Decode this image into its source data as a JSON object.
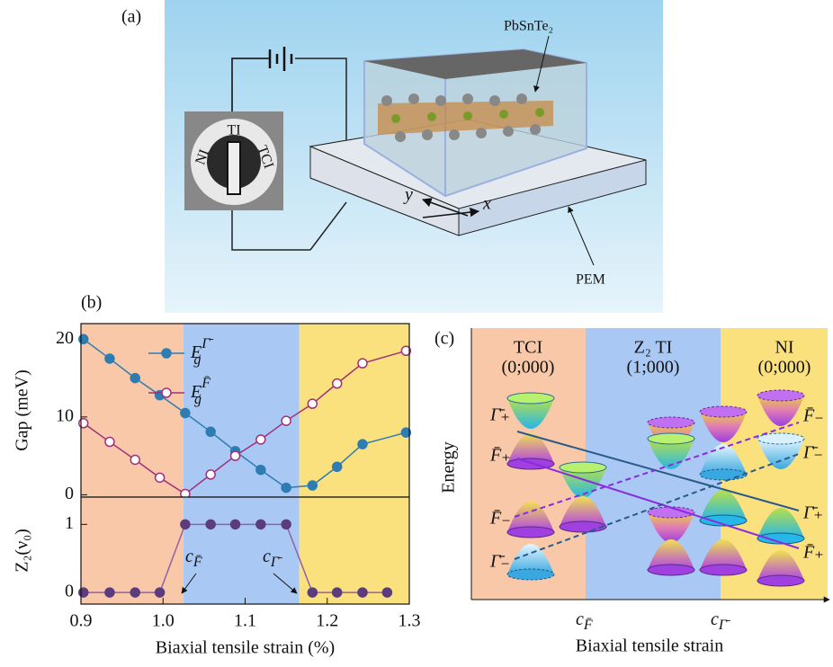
{
  "panel_a": {
    "label": "(a)",
    "material": "PbSnTe₂",
    "switch": [
      "NI",
      "TI",
      "TCI"
    ],
    "axis_y": "y",
    "axis_x": "x",
    "substrate": "PEM"
  },
  "panel_b_label": "(b)",
  "chart_data": [
    {
      "type": "line",
      "ylabel": "Gap (meV)",
      "xlim": [
        0.9,
        1.3
      ],
      "ylim": [
        -0.3,
        22
      ],
      "yticks": [
        0,
        10,
        20
      ],
      "regions": [
        {
          "from": 0.9,
          "to": 1.025,
          "color": "#f9c8a8"
        },
        {
          "from": 1.025,
          "to": 1.166,
          "color": "#a9c9f4"
        },
        {
          "from": 1.166,
          "to": 1.3,
          "color": "#fbe07e"
        }
      ],
      "x": [
        0.903,
        0.935,
        0.966,
        0.996,
        1.027,
        1.058,
        1.088,
        1.119,
        1.15,
        1.182,
        1.212,
        1.243,
        1.296
      ],
      "series": [
        {
          "name": "E",
          "name_sub": "g",
          "name_sup": "Γ̄",
          "color": "#2d7db3",
          "marker": "filled",
          "values": [
            20,
            17.5,
            15,
            12.8,
            10.5,
            8.1,
            5.6,
            3.2,
            0.9,
            1.2,
            3.6,
            6.5,
            8.0
          ]
        },
        {
          "name": "E",
          "name_sub": "g",
          "name_sup": "F̄",
          "color": "#a0307a",
          "marker": "open",
          "values": [
            9.2,
            6.8,
            4.5,
            2.2,
            0.1,
            2.6,
            5.0,
            7.1,
            9.5,
            11.7,
            14.3,
            16.9,
            18.5
          ]
        }
      ]
    },
    {
      "type": "line",
      "ylabel": "Z₂(ν₀)",
      "xlabel": "Biaxial tensile strain (%)",
      "xlim": [
        0.9,
        1.3
      ],
      "ylim": [
        -0.17,
        1.4
      ],
      "yticks": [
        0,
        1
      ],
      "xticks": [
        0.9,
        {
          "value": 1,
          "label": "1.0"
        },
        1.1,
        1.2,
        1.3
      ],
      "x": [
        0.903,
        0.935,
        0.966,
        0.996,
        1.027,
        1.058,
        1.088,
        1.119,
        1.15,
        1.182,
        1.212,
        1.243,
        1.273
      ],
      "series": [
        {
          "color": "#5b3d7e",
          "line_color": "#8f62a6",
          "marker": "filled",
          "values": [
            0,
            0,
            0,
            0,
            1,
            1,
            1,
            1,
            1,
            0,
            0,
            0,
            0
          ]
        }
      ],
      "annotations": [
        {
          "text": "c",
          "sub": "F̄"
        },
        {
          "text": "c",
          "sub": "Γ̄"
        }
      ]
    }
  ],
  "panel_c": {
    "label": "(c)",
    "regions": [
      [
        "TCI",
        "(0;000)"
      ],
      [
        "Z₂ TI",
        "(1;000)"
      ],
      [
        "NI",
        "(0;000)"
      ]
    ],
    "ylabel": "Energy",
    "xlabel": "Biaxial tensile strain",
    "critical": [
      {
        "text": "c",
        "sub": "F̄"
      },
      {
        "text": "c",
        "sub": "Γ̄"
      }
    ],
    "left_labels": [
      "Γ̄₊",
      "F̄₊",
      "F̄₋",
      "Γ̄₋"
    ],
    "right_labels": [
      "F̄₋",
      "Γ̄₋",
      "Γ̄₊",
      "F̄₊"
    ]
  }
}
